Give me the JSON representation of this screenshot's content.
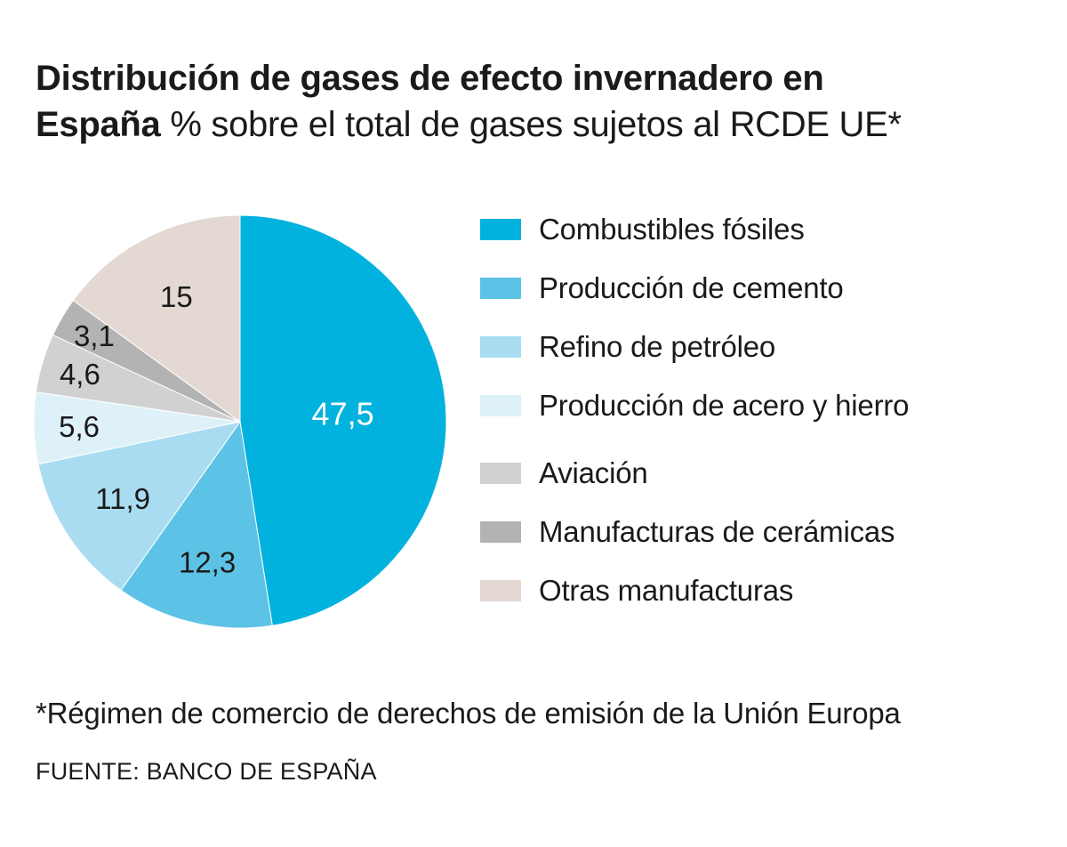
{
  "title": {
    "line1": "Distribución de gases de efecto invernadero en",
    "line2_bold": "España",
    "line2_normal": " % sobre el total de gases sujetos al RCDE UE*"
  },
  "chart_data": {
    "type": "pie",
    "start_angle_deg": 0,
    "direction": "clockwise",
    "slices": [
      {
        "label": "Combustibles fósiles",
        "value": 47.5,
        "display": "47,5",
        "color": "#00b2dd",
        "label_color": "#ffffff"
      },
      {
        "label": "Producción de cemento",
        "value": 12.3,
        "display": "12,3",
        "color": "#5dc3e6",
        "label_color": "#1a1a1a"
      },
      {
        "label": "Refino de petróleo",
        "value": 11.9,
        "display": "11,9",
        "color": "#a9dcf1",
        "label_color": "#1a1a1a"
      },
      {
        "label": "Producción de acero y hierro",
        "value": 5.6,
        "display": "5,6",
        "color": "#def1f9",
        "label_color": "#1a1a1a"
      },
      {
        "label": "Aviación",
        "value": 4.6,
        "display": "4,6",
        "color": "#d1d1d1",
        "label_color": "#1a1a1a"
      },
      {
        "label": "Manufacturas de cerámicas",
        "value": 3.1,
        "display": "3,1",
        "color": "#b3b3b3",
        "label_color": "#1a1a1a"
      },
      {
        "label": "Otras manufacturas",
        "value": 15,
        "display": "15",
        "color": "#e3d9d2",
        "label_color": "#1a1a1a"
      }
    ],
    "legend_placement": "right"
  },
  "footnote": "*Régimen de comercio de derechos de emisión de la Unión Europa",
  "source": "FUENTE: BANCO DE ESPAÑA"
}
